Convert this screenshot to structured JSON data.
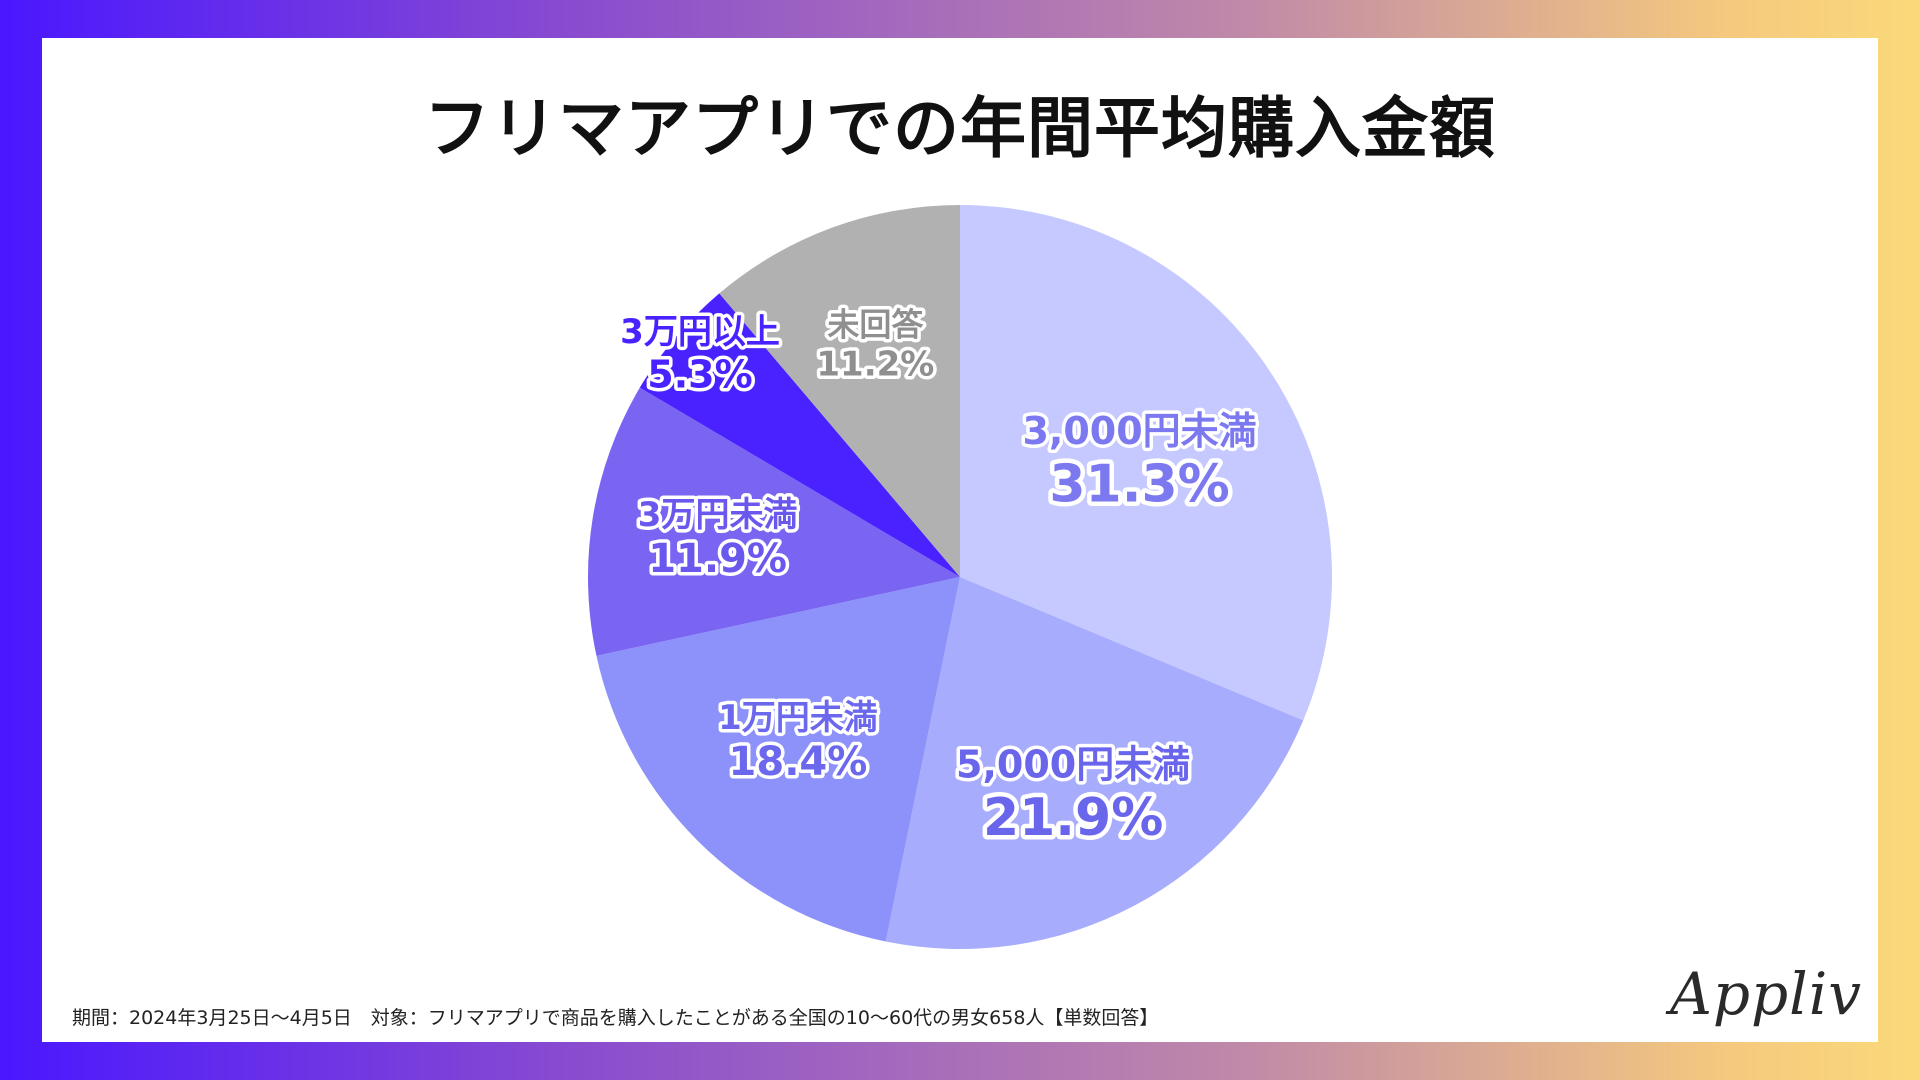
{
  "chart_data": {
    "type": "pie",
    "title": "フリマアプリでの年間平均購入金額",
    "slices": [
      {
        "label": "3,000円未満",
        "value_label": "31.3%",
        "value": 31.3,
        "color": "#c6c9ff",
        "label_color": "#7b78f0"
      },
      {
        "label": "5,000円未満",
        "value_label": "21.9%",
        "value": 21.9,
        "color": "#a8acfc",
        "label_color": "#6a66ec"
      },
      {
        "label": "1万円未満",
        "value_label": "18.4%",
        "value": 18.4,
        "color": "#8c92fa",
        "label_color": "#6b68ee"
      },
      {
        "label": "3万円未満",
        "value_label": "11.9%",
        "value": 11.9,
        "color": "#7a65f3",
        "label_color": "#6a58ee"
      },
      {
        "label": "3万円以上",
        "value_label": "5.3%",
        "value": 5.3,
        "color": "#4a22ff",
        "label_color": "#4a22ff"
      },
      {
        "label": "未回答",
        "value_label": "11.2%",
        "value": 11.2,
        "color": "#b1b1b1",
        "label_color": "#8f8f8f"
      }
    ],
    "legend": "none"
  },
  "footnote": "期間：2024年3月25日〜4月5日　対象：フリマアプリで商品を購入したことがある全国の10〜60代の男女658人【単数回答】",
  "logo": "Appliv"
}
